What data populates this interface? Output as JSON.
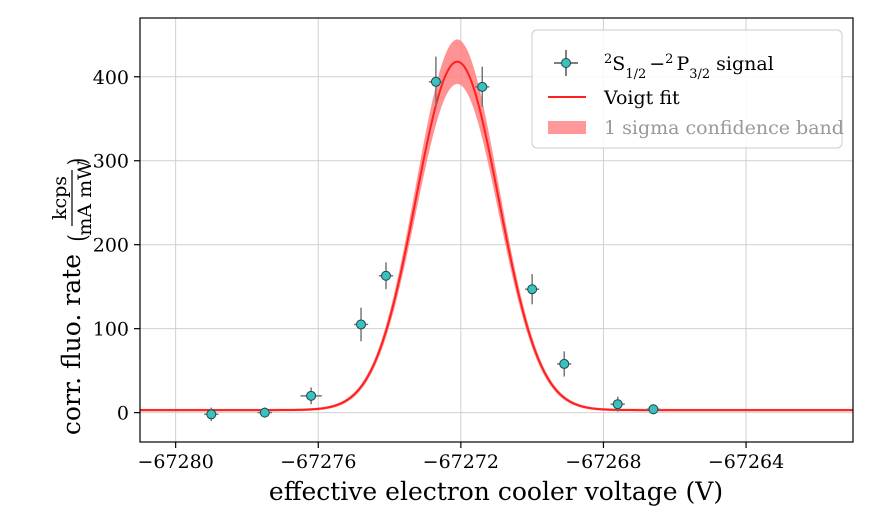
{
  "chart_data": {
    "type": "scatter",
    "xlabel": "effective electron cooler voltage (V)",
    "ylabel": "corr. fluo. rate",
    "ylabel_unit_num": "kcps",
    "ylabel_unit_den": "mA mW",
    "xlim": [
      -67281.0,
      -67261.0
    ],
    "ylim": [
      -35,
      470
    ],
    "x_ticks": [
      -67280,
      -67276,
      -67272,
      -67268,
      -67264
    ],
    "x_tick_labels": [
      "−67280",
      "−67276",
      "−67272",
      "−67268",
      "−67264"
    ],
    "y_ticks": [
      0,
      100,
      200,
      300,
      400
    ],
    "y_tick_labels": [
      "0",
      "100",
      "200",
      "300",
      "400"
    ],
    "grid": true,
    "legend_position": "top-right",
    "series": [
      {
        "name": "2S1/2 −2 P3/2 signal",
        "kind": "errorbar",
        "color": "#3bbfbf",
        "x": [
          -67279.0,
          -67277.5,
          -67276.2,
          -67274.8,
          -67274.1,
          -67272.7,
          -67271.4,
          -67270.0,
          -67269.1,
          -67267.6,
          -67266.6
        ],
        "y": [
          -2,
          0,
          20,
          105,
          163,
          394,
          388,
          147,
          58,
          10,
          4
        ],
        "yerr": [
          8,
          6,
          10,
          20,
          16,
          30,
          24,
          18,
          15,
          9,
          6
        ],
        "xerr": [
          0.2,
          0.2,
          0.3,
          0.2,
          0.2,
          0.2,
          0.2,
          0.2,
          0.2,
          0.2,
          0.2
        ]
      },
      {
        "name": "Voigt fit",
        "kind": "line",
        "color": "#ff2020",
        "amplitude": 415,
        "center": -67272.1,
        "sigma": 1.16,
        "offset": 3
      },
      {
        "name": "1 sigma confidence band",
        "kind": "band",
        "color": "#ff8080",
        "peak_halfwidth": 25,
        "baseline_halfwidth": 1.5
      }
    ],
    "legend": {
      "signal_label": {
        "main1": "S",
        "sup1": "2",
        "sub1": "1/2",
        "sep": "−",
        "main2": "P",
        "sup2": "2",
        "sub2": "3/2",
        "suffix": "signal"
      },
      "fit_label": "Voigt fit",
      "band_label": "1 sigma confidence band"
    }
  }
}
